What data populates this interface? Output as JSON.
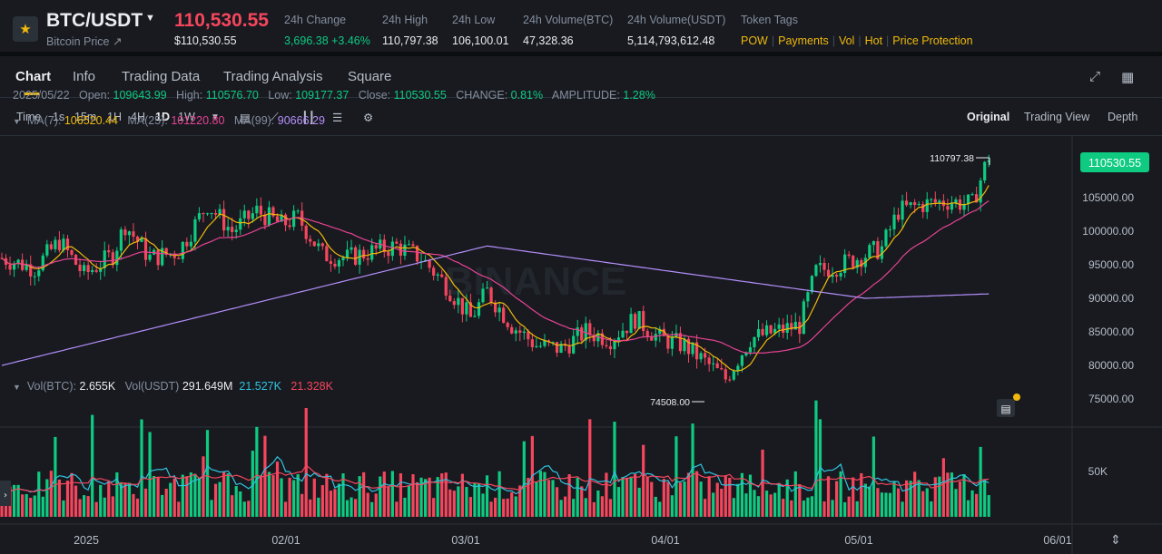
{
  "ticker": {
    "pair": "BTC/USDT",
    "pair_sub": "Bitcoin Price ↗",
    "last_price": "110,530.55",
    "last_price_usd": "$110,530.55",
    "stats": [
      {
        "label": "24h Change",
        "value": "3,696.38 +3.46%"
      },
      {
        "label": "24h High",
        "value": "110,797.38"
      },
      {
        "label": "24h Low",
        "value": "106,100.01"
      },
      {
        "label": "24h Volume(BTC)",
        "value": "47,328.36"
      },
      {
        "label": "24h Volume(USDT)",
        "value": "5,114,793,612.48"
      }
    ],
    "tags_label": "Token Tags",
    "tags": [
      "POW",
      "Payments",
      "Vol",
      "Hot",
      "Price Protection"
    ]
  },
  "tabs": [
    "Chart",
    "Info",
    "Trading Data",
    "Trading Analysis",
    "Square"
  ],
  "toolbar": {
    "intervals": [
      "Time",
      "1s",
      "15m",
      "1H",
      "4H",
      "1D",
      "1W"
    ],
    "views": [
      "Original",
      "Trading View",
      "Depth"
    ]
  },
  "ohlc": {
    "date": "2025/05/22",
    "open_label": "Open:",
    "open": "109643.99",
    "high_label": "High:",
    "high": "110576.70",
    "low_label": "Low:",
    "low": "109177.37",
    "close_label": "Close:",
    "close": "110530.55",
    "change_label": "CHANGE:",
    "change": "0.81%",
    "amp_label": "AMPLITUDE:",
    "amplitude": "1.28%"
  },
  "ma": {
    "ma7_label": "MA(7):",
    "ma7": "106520.44",
    "ma25_label": "MA(25):",
    "ma25": "101220.80",
    "ma99_label": "MA(99):",
    "ma99": "90666.29"
  },
  "vol": {
    "btc_label": "Vol(BTC):",
    "btc": "2.655K",
    "usdt_label": "Vol(USDT)",
    "usdt": "291.649M",
    "ma_a": "21.527K",
    "ma_b": "21.328K"
  },
  "colors": {
    "up": "#0ecb81",
    "down": "#f6465d",
    "ma7": "#f0b90b",
    "ma25": "#e84393",
    "ma99": "#b48ffa",
    "vol_ma_a": "#2ec4e0",
    "vol_ma_b": "#f6465d"
  },
  "chart_data": {
    "type": "candlestick",
    "price_axis_ticks": [
      "105000.00",
      "100000.00",
      "95000.00",
      "90000.00",
      "85000.00",
      "80000.00",
      "75000.00"
    ],
    "price_ticks_values": [
      105000,
      100000,
      95000,
      90000,
      85000,
      80000,
      75000
    ],
    "current_price_tag": "110530.55",
    "high_marker": "110797.38",
    "low_marker": "74508.00",
    "volume_axis_ticks": [
      "50K"
    ],
    "x_tick_labels": [
      "2025",
      "02/01",
      "03/01",
      "04/01",
      "05/01",
      "06/01"
    ],
    "watermark": "BINANCE"
  }
}
